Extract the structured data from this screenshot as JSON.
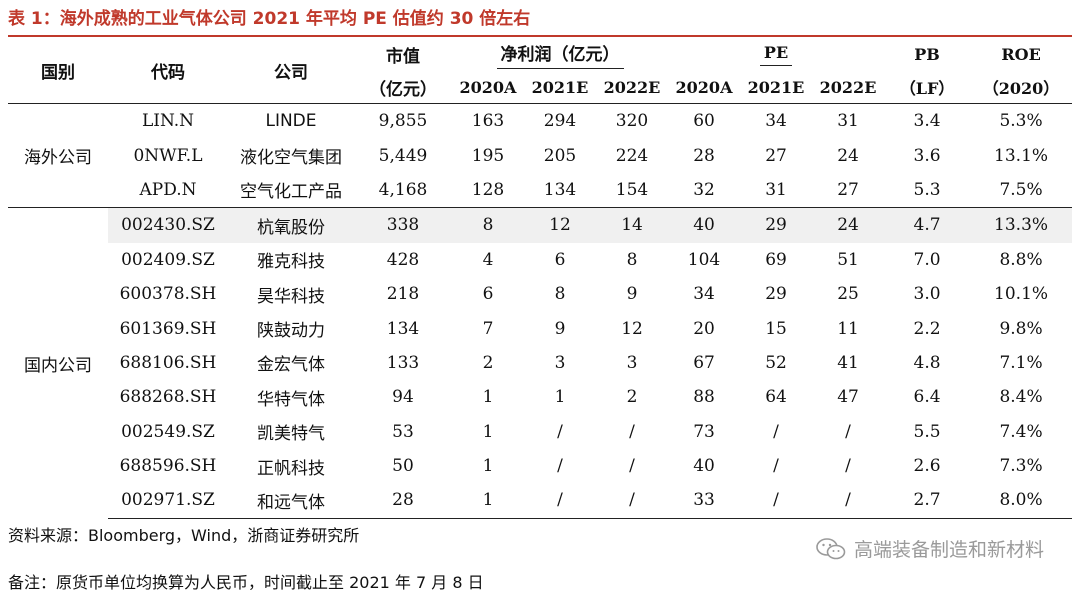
{
  "title": "表 1：海外成熟的工业气体公司 2021 年平均 PE 估值约 30 倍左右",
  "header": {
    "country": "国别",
    "code": "代码",
    "company": "公司",
    "mcap": "市值",
    "mcap_unit": "（亿元）",
    "net_profit": "净利润（亿元）",
    "pe": "PE",
    "pb": "PB",
    "pb_sub": "（LF）",
    "roe": "ROE",
    "roe_sub": "（2020）",
    "years": [
      "2020A",
      "2021E",
      "2022E",
      "2020A",
      "2021E",
      "2022E"
    ]
  },
  "groups": [
    {
      "name": "海外公司",
      "rows": [
        {
          "code": "LIN.N",
          "name": "LINDE",
          "mcap": "9,855",
          "np": [
            "163",
            "294",
            "320"
          ],
          "pe": [
            "60",
            "34",
            "31"
          ],
          "pb": "3.4",
          "roe": "5.3%"
        },
        {
          "code": "0NWF.L",
          "name": "液化空气集团",
          "mcap": "5,449",
          "np": [
            "195",
            "205",
            "224"
          ],
          "pe": [
            "28",
            "27",
            "24"
          ],
          "pb": "3.6",
          "roe": "13.1%"
        },
        {
          "code": "APD.N",
          "name": "空气化工产品",
          "mcap": "4,168",
          "np": [
            "128",
            "134",
            "154"
          ],
          "pe": [
            "32",
            "31",
            "27"
          ],
          "pb": "5.3",
          "roe": "7.5%"
        }
      ]
    },
    {
      "name": "国内公司",
      "rows": [
        {
          "code": "002430.SZ",
          "name": "杭氧股份",
          "mcap": "338",
          "np": [
            "8",
            "12",
            "14"
          ],
          "pe": [
            "40",
            "29",
            "24"
          ],
          "pb": "4.7",
          "roe": "13.3%"
        },
        {
          "code": "002409.SZ",
          "name": "雅克科技",
          "mcap": "428",
          "np": [
            "4",
            "6",
            "8"
          ],
          "pe": [
            "104",
            "69",
            "51"
          ],
          "pb": "7.0",
          "roe": "8.8%"
        },
        {
          "code": "600378.SH",
          "name": "昊华科技",
          "mcap": "218",
          "np": [
            "6",
            "8",
            "9"
          ],
          "pe": [
            "34",
            "29",
            "25"
          ],
          "pb": "3.0",
          "roe": "10.1%"
        },
        {
          "code": "601369.SH",
          "name": "陕鼓动力",
          "mcap": "134",
          "np": [
            "7",
            "9",
            "12"
          ],
          "pe": [
            "20",
            "15",
            "11"
          ],
          "pb": "2.2",
          "roe": "9.8%"
        },
        {
          "code": "688106.SH",
          "name": "金宏气体",
          "mcap": "133",
          "np": [
            "2",
            "3",
            "3"
          ],
          "pe": [
            "67",
            "52",
            "41"
          ],
          "pb": "4.8",
          "roe": "7.1%"
        },
        {
          "code": "688268.SH",
          "name": "华特气体",
          "mcap": "94",
          "np": [
            "1",
            "1",
            "2"
          ],
          "pe": [
            "88",
            "64",
            "47"
          ],
          "pb": "6.4",
          "roe": "8.4%"
        },
        {
          "code": "002549.SZ",
          "name": "凯美特气",
          "mcap": "53",
          "np": [
            "1",
            "/",
            "/"
          ],
          "pe": [
            "73",
            "/",
            "/"
          ],
          "pb": "5.5",
          "roe": "7.4%"
        },
        {
          "code": "688596.SH",
          "name": "正帆科技",
          "mcap": "50",
          "np": [
            "1",
            "/",
            "/"
          ],
          "pe": [
            "40",
            "/",
            "/"
          ],
          "pb": "2.6",
          "roe": "7.3%"
        },
        {
          "code": "002971.SZ",
          "name": "和远气体",
          "mcap": "28",
          "np": [
            "1",
            "/",
            "/"
          ],
          "pe": [
            "33",
            "/",
            "/"
          ],
          "pb": "2.7",
          "roe": "8.0%"
        }
      ]
    }
  ],
  "source": "资料来源：Bloomberg，Wind，浙商证券研究所",
  "note": "备注：原货币单位均换算为人民币，时间截止至 2021 年 7 月 8 日",
  "watermark": "高端装备制造和新材料"
}
